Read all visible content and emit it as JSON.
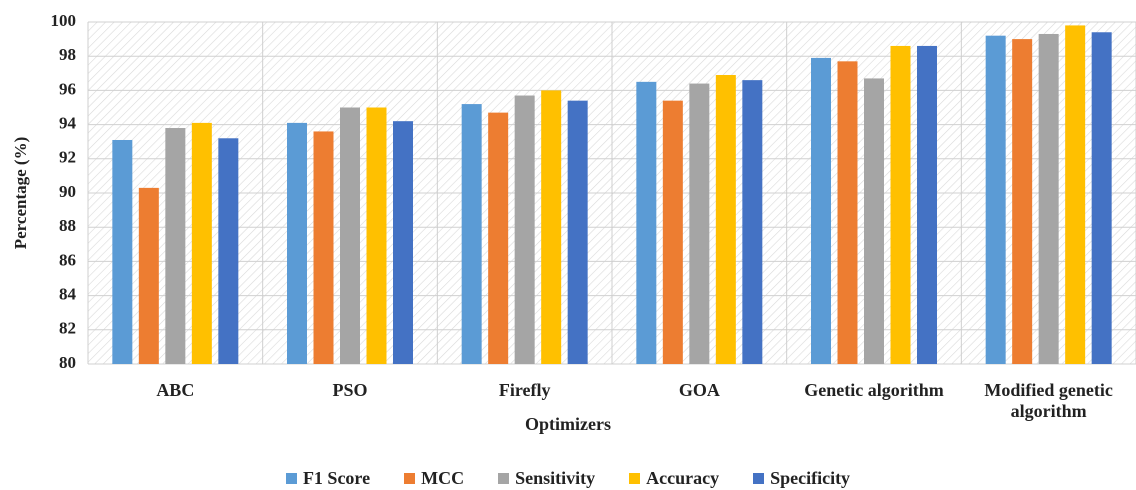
{
  "chart_data": {
    "type": "bar",
    "xlabel": "Optimizers",
    "ylabel": "Percentage (%)",
    "categories": [
      "ABC",
      "PSO",
      "Firefly",
      "GOA",
      "Genetic algorithm",
      "Modified genetic algorithm"
    ],
    "series": [
      {
        "name": "F1 Score",
        "color": "#5b9bd5",
        "values": [
          93.1,
          94.1,
          95.2,
          96.5,
          97.9,
          99.2
        ]
      },
      {
        "name": "MCC",
        "color": "#ed7d31",
        "values": [
          90.3,
          93.6,
          94.7,
          95.4,
          97.7,
          99.0
        ]
      },
      {
        "name": "Sensitivity",
        "color": "#a5a5a5",
        "values": [
          93.8,
          95.0,
          95.7,
          96.4,
          96.7,
          99.3
        ]
      },
      {
        "name": "Accuracy",
        "color": "#ffc000",
        "values": [
          94.1,
          95.0,
          96.0,
          96.9,
          98.6,
          99.8
        ]
      },
      {
        "name": "Specificity",
        "color": "#4472c4",
        "values": [
          93.2,
          94.2,
          95.4,
          96.6,
          98.6,
          99.4
        ]
      }
    ],
    "ylim": [
      80,
      100
    ],
    "yticks": [
      80,
      82,
      84,
      86,
      88,
      90,
      92,
      94,
      96,
      98,
      100
    ],
    "grid": true,
    "legend": "bottom"
  }
}
